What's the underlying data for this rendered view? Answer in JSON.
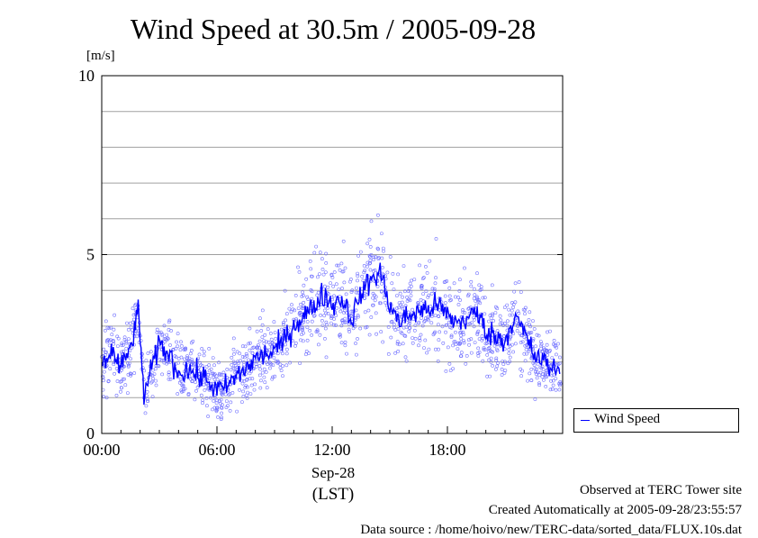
{
  "chart_data": {
    "type": "scatter",
    "title": "Wind Speed at 30.5m / 2005-09-28",
    "ylabel": "[m/s]",
    "xlabel_date": "Sep-28",
    "xlabel_zone": "(LST)",
    "ylim": [
      0,
      10
    ],
    "xlim_hours": [
      0,
      24
    ],
    "y_ticks": [
      0,
      5,
      10
    ],
    "x_ticks": [
      {
        "hour": 0,
        "label": "00:00"
      },
      {
        "hour": 6,
        "label": "06:00"
      },
      {
        "hour": 12,
        "label": "12:00"
      },
      {
        "hour": 18,
        "label": "18:00"
      }
    ],
    "grid": "horizontal, every 1 m/s",
    "legend": {
      "position": "bottom-right outside",
      "entries": [
        "Wind Speed"
      ]
    },
    "series": [
      {
        "name": "Wind Speed",
        "color": "#0000ff",
        "style": "line (moving mean) over scattered 10 s samples",
        "hours": [
          0.0,
          0.5,
          1.0,
          1.5,
          1.9,
          2.2,
          2.5,
          3.0,
          3.5,
          4.0,
          4.5,
          5.0,
          5.5,
          6.0,
          6.5,
          7.0,
          7.5,
          8.0,
          8.5,
          9.0,
          9.5,
          10.0,
          10.5,
          11.0,
          11.5,
          12.0,
          12.5,
          13.0,
          13.5,
          14.0,
          14.5,
          15.0,
          15.5,
          16.0,
          16.5,
          17.0,
          17.5,
          18.0,
          18.5,
          19.0,
          19.5,
          20.0,
          20.5,
          21.0,
          21.5,
          22.0,
          22.5,
          23.0,
          23.5
        ],
        "mean_values": [
          1.9,
          2.3,
          1.8,
          2.4,
          3.4,
          1.1,
          1.6,
          2.5,
          2.2,
          1.7,
          1.8,
          1.6,
          1.5,
          1.2,
          1.3,
          1.6,
          1.8,
          2.1,
          2.2,
          2.3,
          2.6,
          3.0,
          3.3,
          3.5,
          3.9,
          3.6,
          3.8,
          3.2,
          3.9,
          4.3,
          4.5,
          3.6,
          3.1,
          3.3,
          3.4,
          3.5,
          3.6,
          3.3,
          3.1,
          3.2,
          3.4,
          2.9,
          2.7,
          2.6,
          3.3,
          2.8,
          2.2,
          2.0,
          1.8
        ]
      }
    ]
  },
  "footer": {
    "observed": "Observed at TERC Tower site",
    "created": "Created Automatically at 2005-09-28/23:55:57",
    "source": "Data source : /home/hoivo/new/TERC-data/sorted_data/FLUX.10s.dat"
  }
}
